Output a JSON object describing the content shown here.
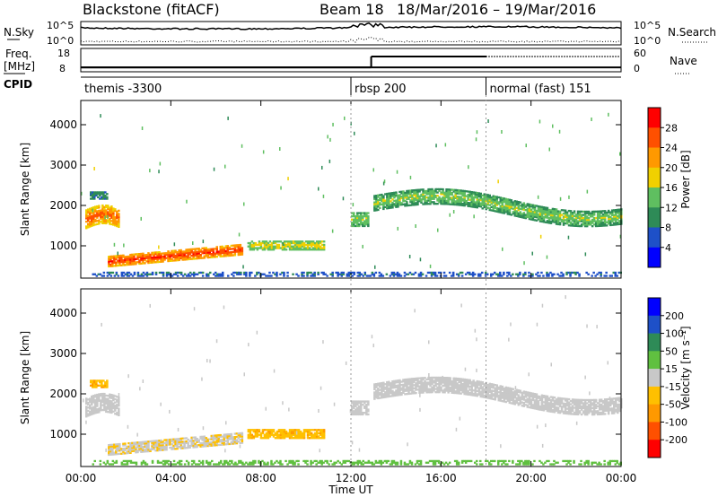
{
  "header": {
    "station": "Blackstone (fitACF)",
    "beam": "Beam 18",
    "date_range": "18/Mar/2016 – 19/Mar/2016"
  },
  "noise_panel": {
    "left_label": "N.Sky",
    "right_label": "N.Search",
    "left_ticks": [
      "10^5",
      "10^0"
    ],
    "right_ticks": [
      "10^5",
      "10^0"
    ]
  },
  "freq_panel": {
    "left_label_1": "Freq.",
    "left_label_2": "[MHz]",
    "right_label": "Nave",
    "left_ticks": [
      "18",
      "8"
    ],
    "right_ticks": [
      "60",
      "0"
    ],
    "freq_steps": [
      [
        0,
        12.9,
        9.3
      ],
      [
        12.9,
        24,
        9.3
      ]
    ],
    "nave_steps": [
      [
        0,
        12.9,
        8
      ],
      [
        12.9,
        18,
        41
      ],
      [
        18,
        24,
        41
      ]
    ]
  },
  "cpid_panel": {
    "label": "CPID",
    "programs": [
      {
        "name": "themis -3300",
        "start": 0,
        "end": 12
      },
      {
        "name": "rbsp 200",
        "start": 12,
        "end": 18
      },
      {
        "name": "normal (fast) 151",
        "start": 18,
        "end": 24
      }
    ]
  },
  "colors": {
    "power_scale": [
      "#0000ff",
      "#1e50c8",
      "#2e8b57",
      "#5fbf60",
      "#f0d000",
      "#ff9900",
      "#ff5000",
      "#ff0000"
    ],
    "velocity_scale": [
      "#ff0000",
      "#ff5000",
      "#ff9900",
      "#ffc000",
      "#c8c8c8",
      "#60c040",
      "#2e8b57",
      "#1e50c8",
      "#0000ff"
    ]
  },
  "power_colorbar": {
    "label": "Power [dB]",
    "ticks": [
      "28",
      "24",
      "20",
      "16",
      "12",
      "8",
      "4"
    ]
  },
  "velocity_colorbar": {
    "label": "Velocity [m s⁻¹]",
    "ticks": [
      "200",
      "100",
      "50",
      "15",
      "-15",
      "-50",
      "-100",
      "-200"
    ]
  },
  "chart_data": [
    {
      "type": "heatmap",
      "parameter": "power",
      "xlabel": "",
      "ylabel": "Slant Range [km]",
      "xlim": [
        0,
        24
      ],
      "ylim": [
        200,
        4600
      ],
      "yticks": [
        1000,
        2000,
        3000,
        4000
      ],
      "grid": false,
      "echo_regions": [
        {
          "t_start": 0.2,
          "t_end": 1.7,
          "r_center": 1650,
          "r_width": 450,
          "power_db": 18,
          "power_core_db": 26
        },
        {
          "t_start": 0.4,
          "t_end": 1.2,
          "r_center": 2250,
          "r_width": 200,
          "power_db": 8,
          "power_core_db": 10
        },
        {
          "t_start": 1.2,
          "t_end": 7.2,
          "r_center": 750,
          "r_width": 250,
          "power_db": 20,
          "power_core_db": 28
        },
        {
          "t_start": 7.4,
          "t_end": 10.8,
          "r_center": 1000,
          "r_width": 220,
          "power_db": 14,
          "power_core_db": 18
        },
        {
          "t_start": 12.0,
          "t_end": 12.8,
          "r_center": 1650,
          "r_width": 350,
          "power_db": 12,
          "power_core_db": 16
        },
        {
          "t_start": 13.0,
          "t_end": 24.0,
          "r_center": 2050,
          "r_width": 380,
          "power_db": 10,
          "power_core_db": 16
        },
        {
          "t_start": 0.5,
          "t_end": 24.0,
          "r_center": 300,
          "r_width": 120,
          "power_db": 6,
          "power_core_db": 8
        }
      ]
    },
    {
      "type": "heatmap",
      "parameter": "velocity",
      "xlabel": "Time UT",
      "ylabel": "Slant Range [km]",
      "xlim": [
        0,
        24
      ],
      "ylim": [
        200,
        4600
      ],
      "xticks": [
        "00:00",
        "04:00",
        "08:00",
        "12:00",
        "16:00",
        "20:00",
        "00:00"
      ],
      "yticks": [
        1000,
        2000,
        3000,
        4000
      ],
      "grid": false,
      "echo_regions": [
        {
          "t_start": 0.2,
          "t_end": 1.7,
          "r_center": 1650,
          "r_width": 450,
          "velocity": 0
        },
        {
          "t_start": 0.4,
          "t_end": 1.2,
          "r_center": 2250,
          "r_width": 200,
          "velocity": -40
        },
        {
          "t_start": 1.2,
          "t_end": 7.2,
          "r_center": 750,
          "r_width": 250,
          "velocity": -10
        },
        {
          "t_start": 7.4,
          "t_end": 10.8,
          "r_center": 1000,
          "r_width": 220,
          "velocity": -40
        },
        {
          "t_start": 12.0,
          "t_end": 12.8,
          "r_center": 1650,
          "r_width": 350,
          "velocity": 0
        },
        {
          "t_start": 13.0,
          "t_end": 24.0,
          "r_center": 2050,
          "r_width": 380,
          "velocity": 0
        },
        {
          "t_start": 0.5,
          "t_end": 24.0,
          "r_center": 300,
          "r_width": 120,
          "velocity": 30
        }
      ]
    }
  ]
}
